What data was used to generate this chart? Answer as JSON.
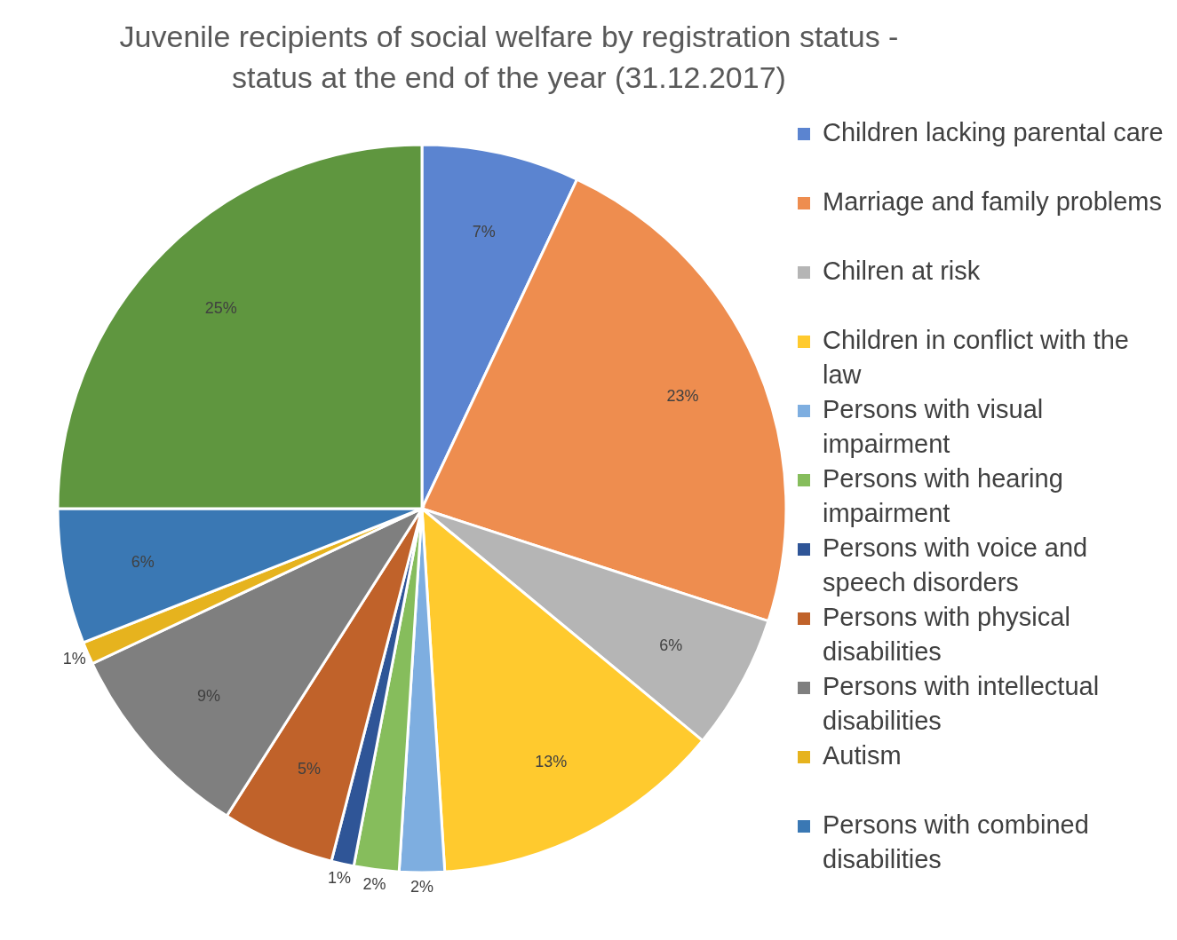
{
  "chart_data": {
    "type": "pie",
    "title": "Juvenile recipients of social welfare by registration status - status at the end of the year (31.12.2017)",
    "categories": [
      "Children lacking parental care",
      "Marriage and family problems",
      "Chilren at risk",
      "Children in conflict with the law",
      "Persons with visual impairment",
      "Persons with hearing impairment",
      "Persons with voice and speech disorders",
      "Persons with physical disabilities",
      "Persons with intellectual disabilities",
      "Autism",
      "Persons with combined disabilities",
      null
    ],
    "values": [
      7,
      23,
      6,
      13,
      2,
      2,
      1,
      5,
      9,
      1,
      6,
      25
    ],
    "value_labels": [
      "7%",
      "23%",
      "6%",
      "13%",
      "2%",
      "2%",
      "1%",
      "5%",
      "9%",
      "1%",
      "6%",
      "25%"
    ],
    "colors": [
      "#5b84d0",
      "#ee8d4f",
      "#b5b5b5",
      "#ffca2e",
      "#7eaee0",
      "#86bd5c",
      "#2f5597",
      "#c0622a",
      "#7f7f7f",
      "#e6b31e",
      "#3a78b4",
      "#5f963f"
    ],
    "legend": "right"
  }
}
